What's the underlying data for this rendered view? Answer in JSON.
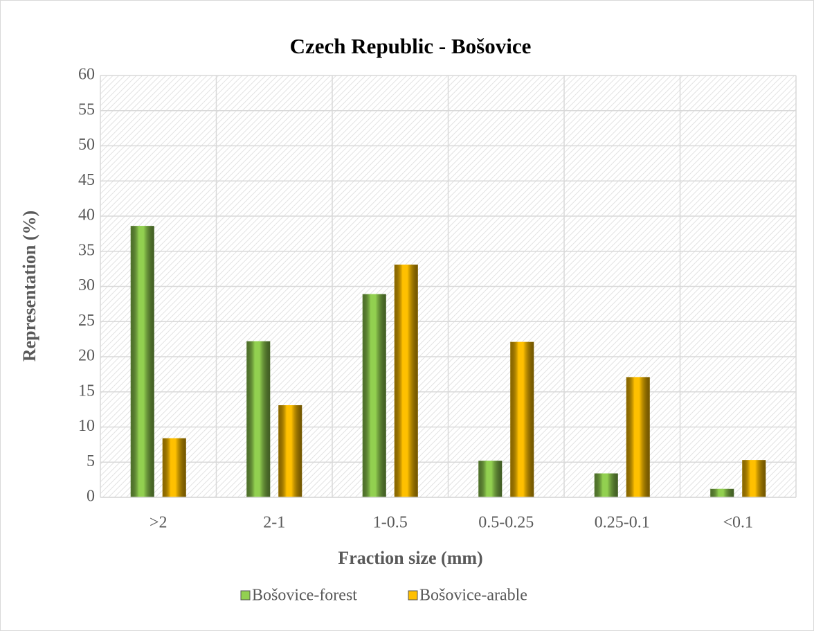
{
  "chart_data": {
    "type": "bar",
    "title": "Czech Republic - Bošovice",
    "x_label": "Fraction size (mm)",
    "y_label": "Representation (%)",
    "categories": [
      ">2",
      "2-1",
      "1-0.5",
      "0.5-0.25",
      "0.25-0.1",
      "<0.1"
    ],
    "series": [
      {
        "name": "Bošovice-forest",
        "color": "#92d050",
        "values": [
          38.6,
          22.2,
          28.9,
          5.2,
          3.4,
          1.2
        ]
      },
      {
        "name": "Bošovice-arable",
        "color": "#ffc000",
        "values": [
          8.4,
          13.1,
          33.1,
          22.1,
          17.1,
          5.3
        ]
      }
    ],
    "ylim": [
      0,
      60
    ],
    "yticks": [
      0,
      5,
      10,
      15,
      20,
      25,
      30,
      35,
      40,
      45,
      50,
      55,
      60
    ],
    "grid": true,
    "legend": "bottom"
  }
}
